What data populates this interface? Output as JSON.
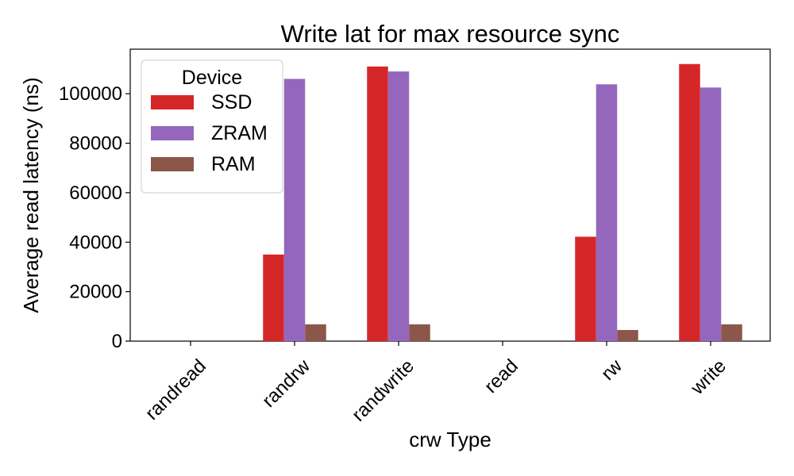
{
  "chart_data": {
    "type": "bar",
    "title": "Write lat for max resource sync",
    "xlabel": "crw Type",
    "ylabel": "Average read latency (ns)",
    "categories": [
      "randread",
      "randrw",
      "randwrite",
      "read",
      "rw",
      "write"
    ],
    "ylim": [
      0,
      118000
    ],
    "yticks": [
      0,
      20000,
      40000,
      60000,
      80000,
      100000
    ],
    "grid": false,
    "legend": {
      "title": "Device",
      "placement": "top-left"
    },
    "series": [
      {
        "name": "SSD",
        "color": "#d62728",
        "values": [
          0,
          35000,
          111000,
          0,
          42200,
          112000
        ]
      },
      {
        "name": "ZRAM",
        "color": "#9467bd",
        "values": [
          0,
          106000,
          109000,
          0,
          103800,
          102500
        ]
      },
      {
        "name": "RAM",
        "color": "#8c564b",
        "values": [
          0,
          6800,
          6800,
          0,
          4500,
          6800
        ]
      }
    ]
  }
}
